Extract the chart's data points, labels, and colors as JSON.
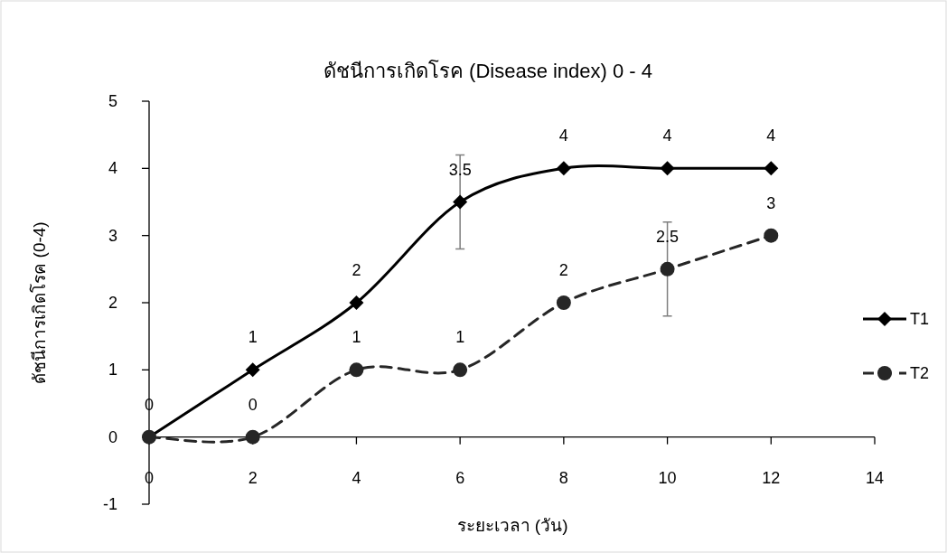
{
  "chart_data": {
    "type": "line",
    "title": "ดัชนีการเกิดโรค (Disease index) 0 - 4",
    "xlabel": "ระยะเวลา (วัน)",
    "ylabel": "ดัชนีการเกิดโรค (0-4)",
    "x": [
      0,
      2,
      4,
      6,
      8,
      10,
      12
    ],
    "xlim": [
      0,
      14
    ],
    "xticks": [
      0,
      2,
      4,
      6,
      8,
      10,
      12,
      14
    ],
    "ylim": [
      -1,
      5
    ],
    "yticks": [
      -1,
      0,
      1,
      2,
      3,
      4,
      5
    ],
    "legend": "right",
    "series": [
      {
        "name": "T1",
        "color": "#000000",
        "values": [
          0,
          1,
          2,
          3.5,
          4,
          4,
          4
        ],
        "marker": "diamond",
        "line_style": "solid",
        "value_labels": [
          "0",
          "1",
          "2",
          "3.5",
          "4",
          "4",
          "4"
        ],
        "errors": [
          null,
          null,
          null,
          0.7,
          null,
          null,
          null
        ]
      },
      {
        "name": "T2",
        "color": "#262626",
        "values": [
          0,
          0,
          1,
          1,
          2,
          2.5,
          3
        ],
        "marker": "circle",
        "line_style": "dashed",
        "value_labels": [
          null,
          "0",
          "1",
          "1",
          "2",
          "2.5",
          "3"
        ],
        "errors": [
          null,
          null,
          null,
          null,
          null,
          0.7,
          null
        ]
      }
    ]
  }
}
